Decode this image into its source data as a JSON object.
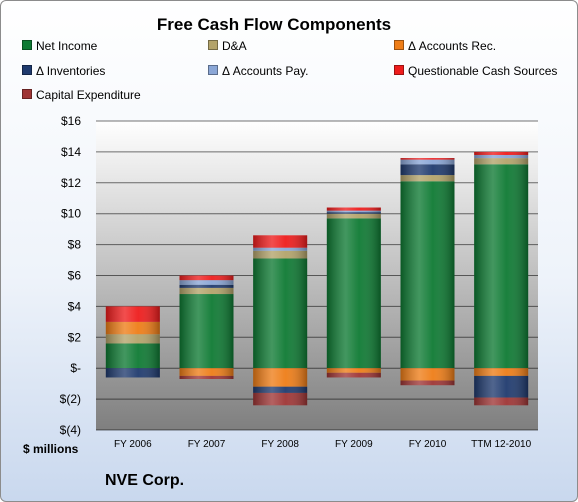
{
  "chart_data": {
    "type": "bar",
    "stacked": true,
    "title": "Free Cash Flow Components",
    "categories": [
      "FY 2006",
      "FY 2007",
      "FY 2008",
      "FY 2009",
      "FY 2010",
      "TTM 12-2010"
    ],
    "series": [
      {
        "name": "Net Income",
        "color": "#0e7a33",
        "values": [
          1.6,
          4.8,
          7.1,
          9.7,
          12.1,
          13.2
        ]
      },
      {
        "name": "D&A",
        "color": "#b3a36a",
        "values": [
          0.6,
          0.4,
          0.5,
          0.3,
          0.4,
          0.4
        ]
      },
      {
        "name": "Δ Accounts Rec.",
        "color": "#ee7d17",
        "values": [
          0.8,
          -0.5,
          -1.2,
          -0.3,
          -0.8,
          -0.5
        ]
      },
      {
        "name": "Δ Inventories",
        "color": "#1f3a6e",
        "values": [
          -0.6,
          0.2,
          -0.4,
          0.1,
          0.7,
          -1.4
        ]
      },
      {
        "name": "Δ Accounts Pay.",
        "color": "#8aa6d6",
        "values": [
          0.0,
          0.3,
          0.2,
          0.1,
          0.3,
          0.2
        ]
      },
      {
        "name": "Questionable Cash Sources",
        "color": "#ee1c1c",
        "values": [
          1.0,
          0.3,
          0.8,
          0.2,
          0.1,
          0.2
        ]
      },
      {
        "name": "Capital Expenditure",
        "color": "#9e3535",
        "values": [
          0.0,
          -0.2,
          -0.8,
          -0.3,
          -0.3,
          -0.5
        ]
      }
    ],
    "y_ticks": [
      "$16",
      "$14",
      "$12",
      "$10",
      "$8",
      "$6",
      "$4",
      "$2",
      "$-",
      "$(2)",
      "$(4)"
    ],
    "ylim": [
      -4,
      16
    ],
    "ylabel": "$ millions",
    "grid": true,
    "legend_position": "top"
  },
  "footer": {
    "company": "NVE Corp."
  }
}
